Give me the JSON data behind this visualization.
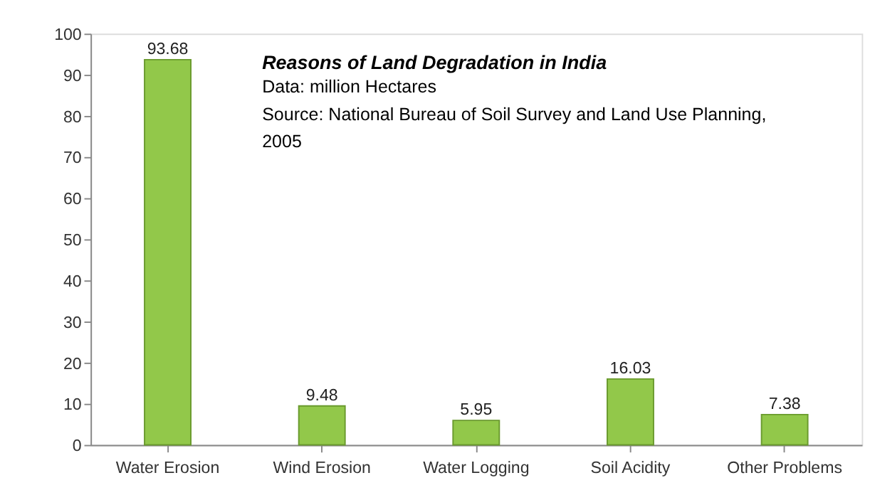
{
  "chart_data": {
    "type": "bar",
    "title": "Reasons of Land Degradation in India",
    "annotations": [
      "Data: million Hectares",
      "Source: National Bureau of Soil Survey and Land Use Planning, 2005"
    ],
    "categories": [
      "Water Erosion",
      "Wind Erosion",
      "Water Logging",
      "Soil Acidity",
      "Other Problems"
    ],
    "values": [
      93.68,
      9.48,
      5.95,
      16.03,
      7.38
    ],
    "color": "#92c84a",
    "ylim": [
      0,
      100
    ],
    "yticks": [
      0,
      10,
      20,
      30,
      40,
      50,
      60,
      70,
      80,
      90,
      100
    ],
    "grid": false,
    "data_labels": true
  }
}
